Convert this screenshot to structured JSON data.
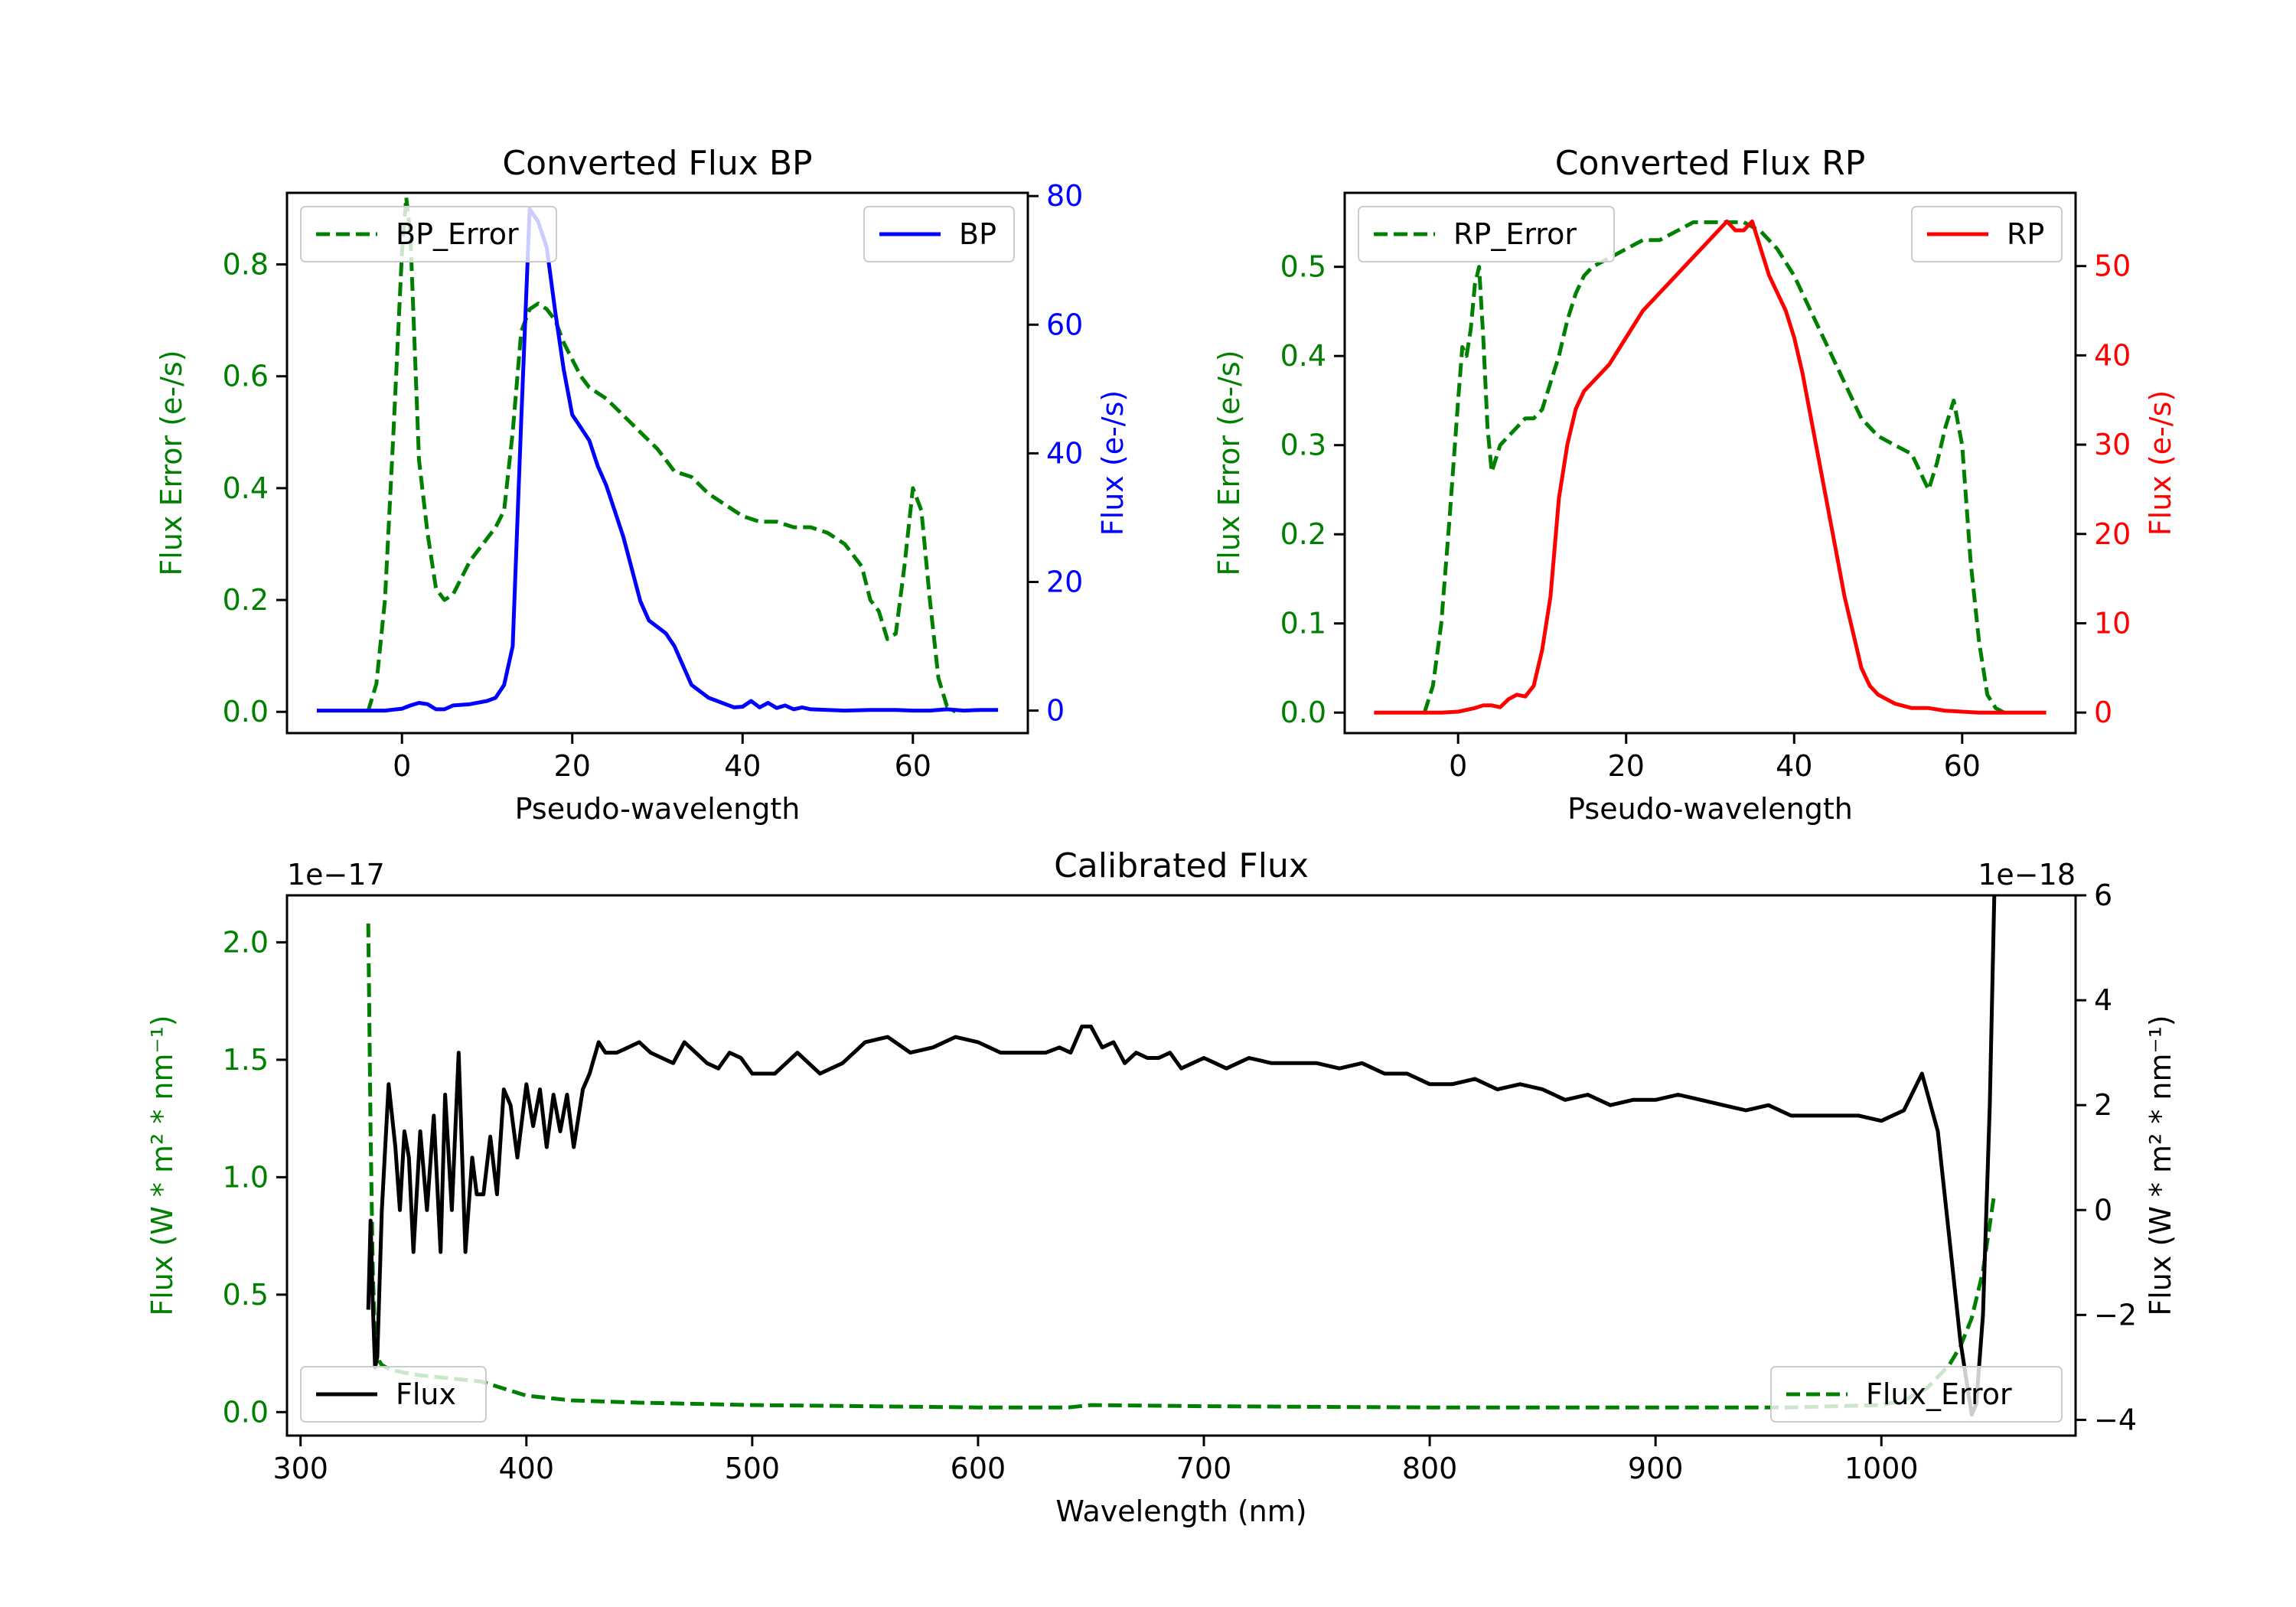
{
  "colors": {
    "error": "#008000",
    "bp": "#0000ff",
    "rp": "#ff0000",
    "flux": "#000000",
    "axis": "#000000"
  },
  "chart_data": [
    {
      "id": "bp",
      "type": "line",
      "title": "Converted Flux BP",
      "xlabel": "Pseudo-wavelength",
      "ylabel_left": "Flux Error (e-/s)",
      "ylabel_right": "Flux (e-/s)",
      "xlim": [
        -13.5,
        73.5
      ],
      "ylim_left": [
        -0.038,
        0.928
      ],
      "ylim_right": [
        -3.5,
        80.5
      ],
      "xticks": [
        0,
        20,
        40,
        60
      ],
      "yticks_left": [
        0.0,
        0.2,
        0.4,
        0.6,
        0.8
      ],
      "yticks_right": [
        0,
        20,
        40,
        60,
        80
      ],
      "legend_left": "BP_Error",
      "legend_right": "BP",
      "series": [
        {
          "name": "BP_Error",
          "axis": "left",
          "style": "dashed",
          "x": [
            -4,
            -3,
            -2,
            -1,
            0,
            0.5,
            1,
            1.5,
            2,
            3,
            4,
            5,
            6,
            7,
            8,
            9,
            10,
            11,
            12,
            13,
            14,
            15,
            16,
            17,
            18,
            19,
            20,
            21,
            22,
            24,
            26,
            28,
            30,
            32,
            34,
            36,
            38,
            40,
            42,
            44,
            46,
            48,
            50,
            52,
            54,
            55,
            56,
            57,
            58,
            59,
            60,
            61,
            62,
            63,
            64,
            65
          ],
          "y": [
            0.0,
            0.05,
            0.2,
            0.5,
            0.82,
            0.92,
            0.85,
            0.65,
            0.45,
            0.32,
            0.22,
            0.2,
            0.21,
            0.24,
            0.27,
            0.29,
            0.31,
            0.33,
            0.36,
            0.5,
            0.68,
            0.72,
            0.73,
            0.72,
            0.7,
            0.66,
            0.63,
            0.6,
            0.58,
            0.56,
            0.53,
            0.5,
            0.47,
            0.43,
            0.42,
            0.39,
            0.37,
            0.35,
            0.34,
            0.34,
            0.33,
            0.33,
            0.32,
            0.3,
            0.26,
            0.2,
            0.18,
            0.13,
            0.14,
            0.26,
            0.4,
            0.36,
            0.2,
            0.06,
            0.01,
            0.0
          ]
        },
        {
          "name": "BP",
          "axis": "right",
          "style": "solid",
          "x": [
            -10,
            -6,
            -4,
            -2,
            0,
            1,
            2,
            3,
            4,
            5,
            6,
            8,
            10,
            11,
            12,
            13,
            14,
            15,
            16,
            17,
            18,
            19,
            20,
            21,
            22,
            23,
            24,
            25,
            26,
            27,
            28,
            29,
            30,
            31,
            32,
            33,
            34,
            35,
            36,
            37,
            38,
            39,
            40,
            41,
            42,
            43,
            44,
            45,
            46,
            47,
            48,
            50,
            52,
            55,
            58,
            60,
            62,
            64,
            66,
            68,
            70
          ],
          "y": [
            0,
            0,
            0,
            0,
            0.3,
            0.8,
            1.2,
            1,
            0.2,
            0.2,
            0.8,
            1,
            1.5,
            2,
            4,
            10,
            45,
            78,
            76,
            72,
            62,
            53,
            46,
            44,
            42,
            38,
            35,
            31,
            27,
            22,
            17,
            14,
            13,
            12,
            10,
            7,
            4,
            3,
            2,
            1.5,
            1,
            0.5,
            0.6,
            1.5,
            0.5,
            1.2,
            0.4,
            0.8,
            0.2,
            0.5,
            0.2,
            0.1,
            0,
            0.1,
            0.1,
            0,
            0,
            0.2,
            0,
            0.1,
            0.1
          ]
        }
      ]
    },
    {
      "id": "rp",
      "type": "line",
      "title": "Converted Flux RP",
      "xlabel": "Pseudo-wavelength",
      "ylabel_left": "Flux Error (e-/s)",
      "ylabel_right": "Flux (e-/s)",
      "xlim": [
        -13.5,
        73.5
      ],
      "ylim_left": [
        -0.023,
        0.583
      ],
      "ylim_right": [
        -2.3,
        58.2
      ],
      "xticks": [
        0,
        20,
        40,
        60
      ],
      "yticks_left": [
        0.0,
        0.1,
        0.2,
        0.3,
        0.4,
        0.5
      ],
      "yticks_right": [
        0,
        10,
        20,
        30,
        40,
        50
      ],
      "legend_left": "RP_Error",
      "legend_right": "RP",
      "series": [
        {
          "name": "RP_Error",
          "axis": "left",
          "style": "dashed",
          "x": [
            -4,
            -3,
            -2,
            -1,
            0,
            0.5,
            1,
            1.5,
            2,
            2.5,
            3,
            3.5,
            4,
            5,
            6,
            7,
            8,
            9,
            10,
            11,
            12,
            13,
            14,
            15,
            16,
            18,
            20,
            22,
            24,
            26,
            28,
            30,
            32,
            34,
            36,
            38,
            40,
            42,
            44,
            46,
            48,
            50,
            52,
            54,
            55,
            56,
            57,
            58,
            59,
            60,
            61,
            62,
            63,
            64,
            65
          ],
          "y": [
            0.0,
            0.03,
            0.1,
            0.22,
            0.35,
            0.41,
            0.4,
            0.43,
            0.48,
            0.5,
            0.42,
            0.32,
            0.27,
            0.3,
            0.31,
            0.32,
            0.33,
            0.33,
            0.34,
            0.37,
            0.4,
            0.44,
            0.47,
            0.49,
            0.5,
            0.51,
            0.52,
            0.53,
            0.53,
            0.54,
            0.55,
            0.55,
            0.55,
            0.55,
            0.54,
            0.52,
            0.49,
            0.45,
            0.41,
            0.37,
            0.33,
            0.31,
            0.3,
            0.29,
            0.27,
            0.25,
            0.28,
            0.32,
            0.35,
            0.3,
            0.17,
            0.08,
            0.02,
            0.005,
            0.0
          ]
        },
        {
          "name": "RP",
          "axis": "right",
          "style": "solid",
          "x": [
            -10,
            -5,
            -2,
            0,
            2,
            3,
            4,
            5,
            6,
            7,
            8,
            9,
            10,
            11,
            12,
            13,
            14,
            15,
            16,
            18,
            20,
            22,
            24,
            26,
            28,
            30,
            31,
            32,
            33,
            34,
            35,
            36,
            37,
            38,
            39,
            40,
            41,
            42,
            43,
            44,
            45,
            46,
            47,
            48,
            49,
            50,
            51,
            52,
            54,
            56,
            58,
            60,
            62,
            64,
            66,
            68,
            70
          ],
          "y": [
            0,
            0,
            0,
            0.1,
            0.5,
            0.8,
            0.8,
            0.6,
            1.5,
            2,
            1.8,
            3,
            7,
            13,
            24,
            30,
            34,
            36,
            37,
            39,
            42,
            45,
            47,
            49,
            51,
            53,
            54,
            55,
            54,
            54,
            55,
            52,
            49,
            47,
            45,
            42,
            38,
            33,
            28,
            23,
            18,
            13,
            9,
            5,
            3,
            2,
            1.5,
            1,
            0.5,
            0.5,
            0.2,
            0.1,
            0,
            0,
            0,
            0,
            0
          ]
        }
      ]
    },
    {
      "id": "cal",
      "type": "line",
      "title": "Calibrated Flux",
      "xlabel": "Wavelength (nm)",
      "ylabel_left": "Flux (W * m² * nm⁻¹)",
      "ylabel_right": "Flux (W * m² * nm⁻¹)",
      "offset_left": "1e−17",
      "offset_right": "1e−18",
      "xlim": [
        294,
        1086
      ],
      "ylim_left": [
        -0.1,
        2.2
      ],
      "ylim_right": [
        -4.3,
        6.0
      ],
      "xticks": [
        300,
        400,
        500,
        600,
        700,
        800,
        900,
        1000
      ],
      "yticks_left": [
        0.0,
        0.5,
        1.0,
        1.5,
        2.0
      ],
      "yticks_right": [
        -4,
        -2,
        0,
        2,
        4,
        6
      ],
      "legend_left": "Flux",
      "legend_right": "Flux_Error",
      "series": [
        {
          "name": "Flux_Error",
          "axis": "left",
          "style": "dashed",
          "x": [
            330,
            331,
            332,
            333,
            334,
            336,
            340,
            350,
            360,
            370,
            380,
            390,
            400,
            420,
            450,
            500,
            550,
            600,
            640,
            650,
            700,
            800,
            900,
            960,
            1000,
            1010,
            1020,
            1025,
            1030,
            1035,
            1040,
            1045,
            1050
          ],
          "y": [
            2.08,
            1.2,
            0.6,
            0.3,
            0.23,
            0.2,
            0.18,
            0.16,
            0.15,
            0.14,
            0.13,
            0.1,
            0.07,
            0.05,
            0.04,
            0.03,
            0.025,
            0.02,
            0.02,
            0.03,
            0.025,
            0.02,
            0.02,
            0.02,
            0.03,
            0.05,
            0.1,
            0.15,
            0.2,
            0.28,
            0.4,
            0.6,
            0.93
          ]
        },
        {
          "name": "Flux",
          "axis": "right",
          "style": "solid",
          "x": [
            330,
            331,
            332,
            333,
            334,
            336,
            339,
            342,
            344,
            346,
            348,
            350,
            353,
            356,
            359,
            362,
            364,
            367,
            370,
            373,
            376,
            378,
            381,
            384,
            387,
            390,
            393,
            396,
            400,
            403,
            406,
            409,
            412,
            415,
            418,
            421,
            425,
            428,
            432,
            435,
            440,
            445,
            450,
            455,
            460,
            465,
            470,
            475,
            480,
            485,
            490,
            495,
            500,
            505,
            510,
            515,
            520,
            530,
            540,
            550,
            560,
            570,
            580,
            590,
            600,
            610,
            620,
            630,
            636,
            641,
            646,
            650,
            655,
            660,
            665,
            670,
            675,
            680,
            685,
            690,
            695,
            700,
            705,
            710,
            715,
            720,
            730,
            740,
            750,
            760,
            770,
            780,
            790,
            800,
            810,
            820,
            830,
            840,
            850,
            860,
            870,
            880,
            890,
            900,
            910,
            920,
            930,
            940,
            950,
            960,
            970,
            980,
            990,
            1000,
            1010,
            1018,
            1025,
            1030,
            1035,
            1040,
            1042,
            1045,
            1048,
            1050
          ],
          "y": [
            -1.9,
            -0.2,
            -1.8,
            -3.0,
            -2.8,
            0.0,
            2.4,
            1.2,
            0.0,
            1.5,
            1.0,
            -0.8,
            1.5,
            0.0,
            1.8,
            -0.8,
            2.2,
            0.0,
            3.0,
            -0.8,
            1.0,
            0.3,
            0.3,
            1.4,
            0.3,
            2.3,
            2.0,
            1.0,
            2.4,
            1.6,
            2.3,
            1.2,
            2.2,
            1.5,
            2.2,
            1.2,
            2.3,
            2.6,
            3.2,
            3.0,
            3.0,
            3.1,
            3.2,
            3.0,
            2.9,
            2.8,
            3.2,
            3.0,
            2.8,
            2.7,
            3.0,
            2.9,
            2.6,
            2.6,
            2.6,
            2.8,
            3.0,
            2.6,
            2.8,
            3.2,
            3.3,
            3.0,
            3.1,
            3.3,
            3.2,
            3.0,
            3.0,
            3.0,
            3.1,
            3.0,
            3.5,
            3.5,
            3.1,
            3.2,
            2.8,
            3.0,
            2.9,
            2.9,
            3.0,
            2.7,
            2.8,
            2.9,
            2.8,
            2.7,
            2.8,
            2.9,
            2.8,
            2.8,
            2.8,
            2.7,
            2.8,
            2.6,
            2.6,
            2.4,
            2.4,
            2.5,
            2.3,
            2.4,
            2.3,
            2.1,
            2.2,
            2.0,
            2.1,
            2.1,
            2.2,
            2.1,
            2.0,
            1.9,
            2.0,
            1.8,
            1.8,
            1.8,
            1.8,
            1.7,
            1.9,
            2.6,
            1.5,
            -0.5,
            -2.5,
            -3.9,
            -3.7,
            -2.0,
            2.0,
            6.0
          ]
        }
      ]
    }
  ]
}
